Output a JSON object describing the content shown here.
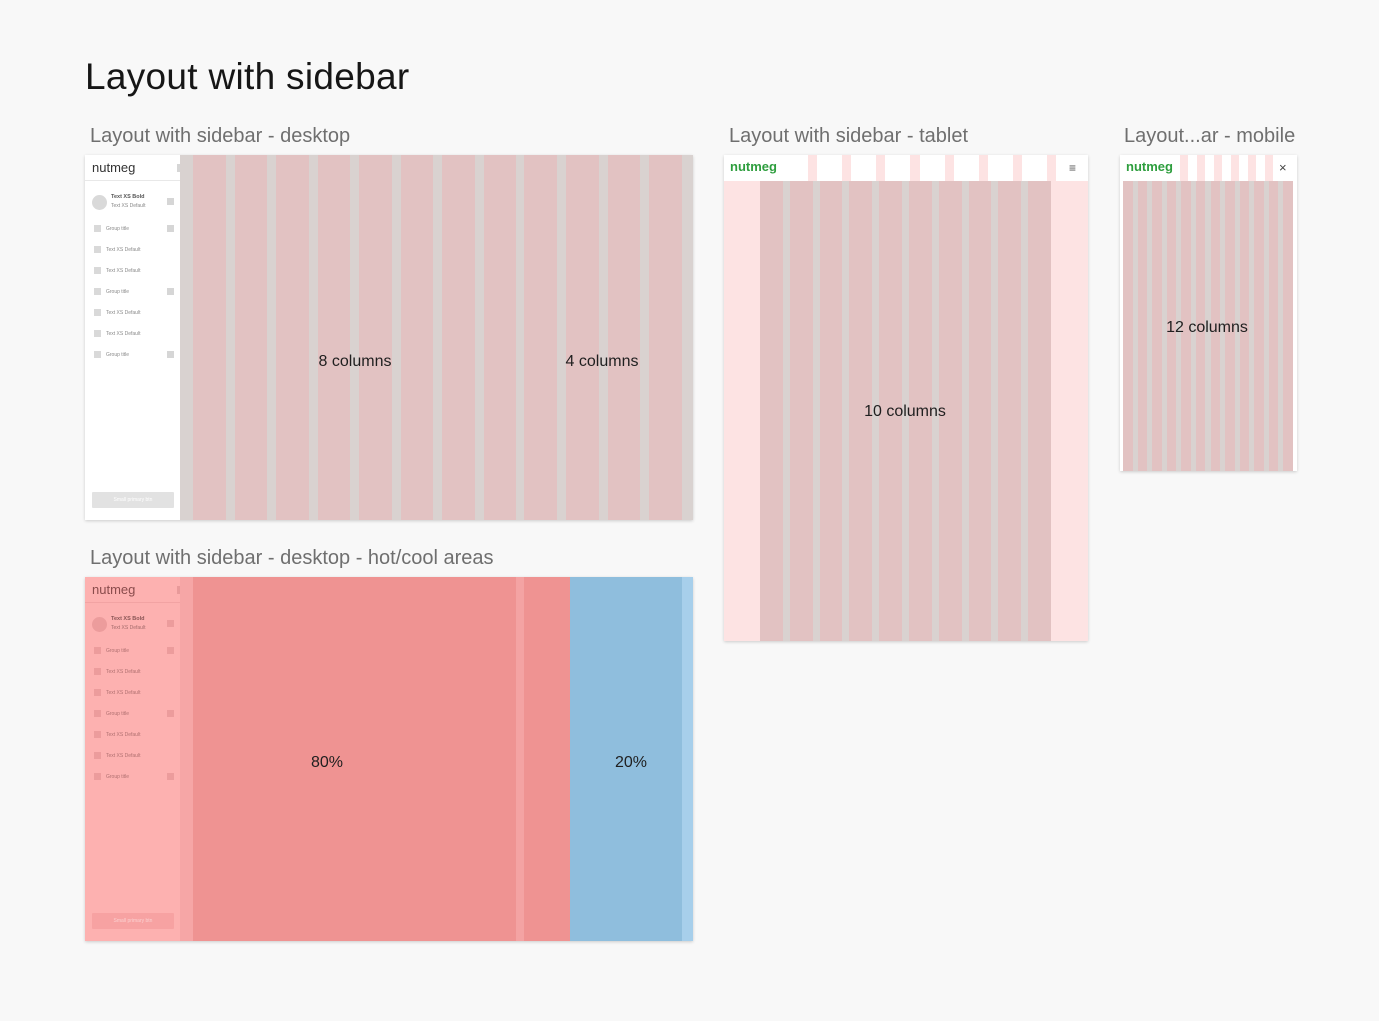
{
  "page_title": "Layout with sidebar",
  "frames": {
    "desktop": {
      "label": "Layout with sidebar - desktop",
      "left_label": "8 columns",
      "right_label": "4 columns"
    },
    "tablet": {
      "label": "Layout with sidebar - tablet",
      "center_label": "10 columns"
    },
    "mobile": {
      "label": "Layout...ar - mobile",
      "center_label": "12 columns"
    },
    "hotcool": {
      "label": "Layout with sidebar - desktop - hot/cool areas",
      "hot_label": "80%",
      "cool_label": "20%"
    }
  },
  "brand": {
    "logo_text": "nutmeg",
    "logo_color_green": "#2e9e3e"
  },
  "sidebar": {
    "user_name": "Text XS Bold",
    "user_sub": "Text XS Default",
    "items": [
      {
        "label": "Group title",
        "has_control": true
      },
      {
        "label": "Text XS Default",
        "has_control": false
      },
      {
        "label": "Text XS Default",
        "has_control": false
      },
      {
        "label": "Group title",
        "has_control": true
      },
      {
        "label": "Text XS Default",
        "has_control": false
      },
      {
        "label": "Text XS Default",
        "has_control": false
      },
      {
        "label": "Group title",
        "has_control": true
      }
    ],
    "button_label": "Small primary btn"
  },
  "icons": {
    "menu": "hamburger-icon",
    "close": "close-icon"
  },
  "colors": {
    "column": "#e2c2c2",
    "gutter": "#d9d2d0",
    "hot": "#ef9392",
    "cool": "#8fbedd",
    "tablet_margin": "#fde3e3"
  }
}
